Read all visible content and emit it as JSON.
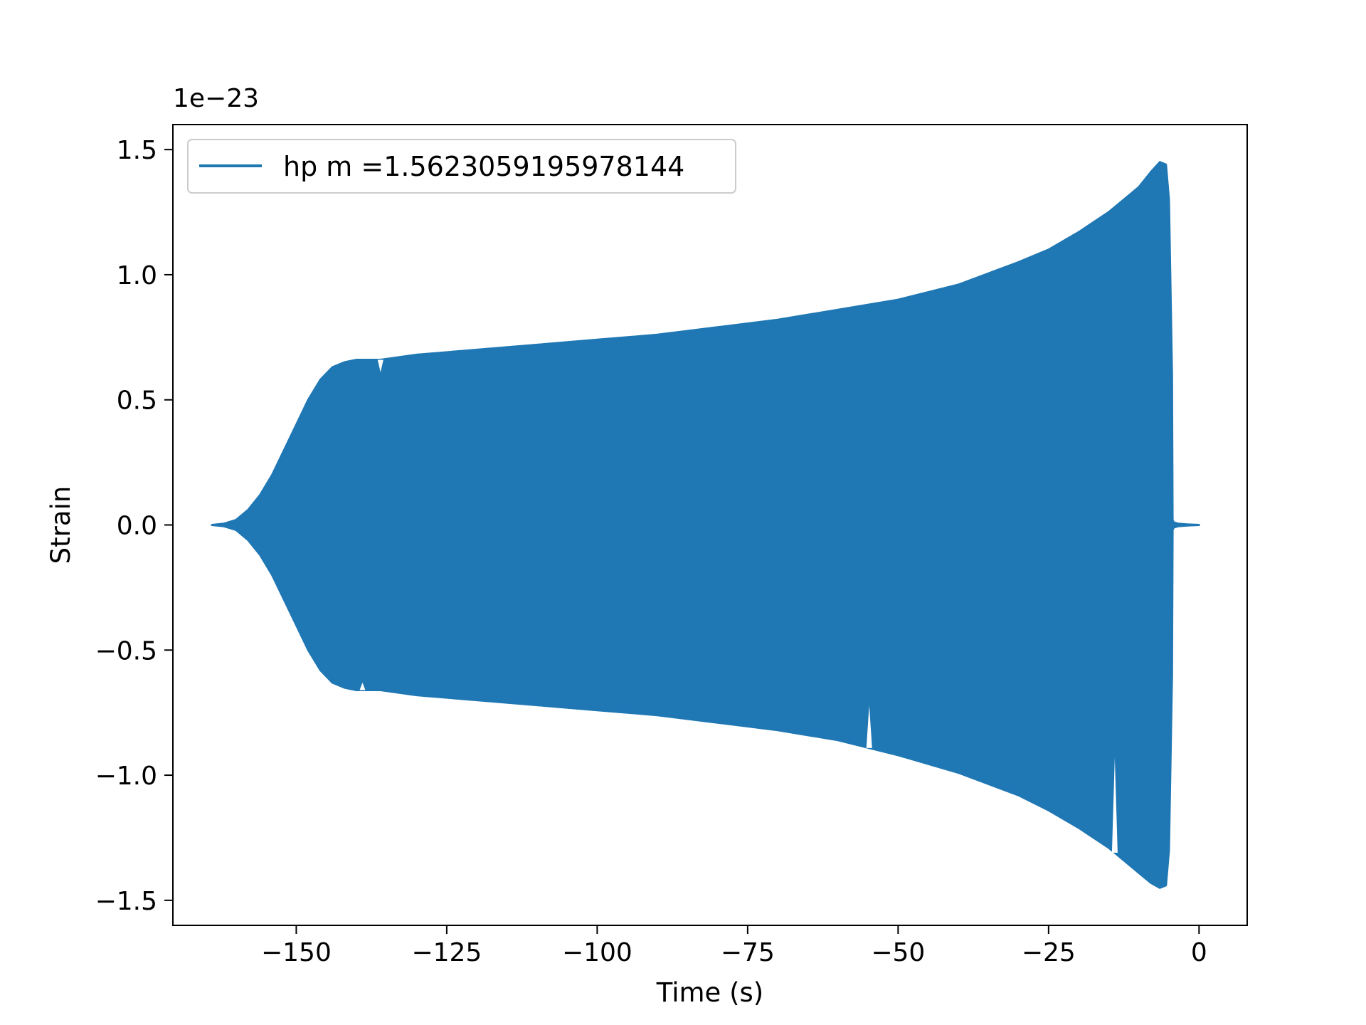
{
  "chart_data": {
    "type": "line",
    "xlabel": "Time (s)",
    "ylabel": "Strain",
    "offset_label": "1e−23",
    "y_scale_factor": 1e-23,
    "xlim": [
      -170.5,
      8.0
    ],
    "ylim": [
      -1.6,
      1.6
    ],
    "x_ticks": [
      -150,
      -125,
      -100,
      -75,
      -50,
      -25,
      0
    ],
    "x_tick_labels": [
      "−150",
      "−125",
      "−100",
      "−75",
      "−50",
      "−25",
      "0"
    ],
    "y_ticks": [
      1.5,
      1.0,
      0.5,
      0.0,
      -0.5,
      -1.0,
      -1.5
    ],
    "y_tick_labels": [
      "1.5",
      "1.0",
      "0.5",
      "0.0",
      "−0.5",
      "−1.0",
      "−1.5"
    ],
    "grid": false,
    "legend_position": "top-left",
    "series": [
      {
        "name": "hp m =1.5623059195978144",
        "color": "#1f77b4",
        "envelope": {
          "t": [
            -164.0,
            -162.0,
            -160.0,
            -158.0,
            -156.0,
            -154.0,
            -152.0,
            -150.0,
            -148.0,
            -146.0,
            -144.0,
            -142.0,
            -140.0,
            -136.0,
            -130.0,
            -120.0,
            -110.0,
            -100.0,
            -90.0,
            -80.0,
            -70.0,
            -60.0,
            -50.0,
            -40.0,
            -30.0,
            -25.0,
            -20.0,
            -15.0,
            -12.0,
            -10.0,
            -8.0,
            -6.5,
            -5.5,
            -5.0,
            -4.5,
            -4.4,
            -4.2,
            -3.5,
            -2.0,
            0.0
          ],
          "upper": [
            0.0,
            0.005,
            0.02,
            0.06,
            0.12,
            0.2,
            0.3,
            0.4,
            0.5,
            0.58,
            0.63,
            0.65,
            0.66,
            0.66,
            0.68,
            0.7,
            0.72,
            0.74,
            0.76,
            0.79,
            0.82,
            0.86,
            0.9,
            0.96,
            1.05,
            1.1,
            1.17,
            1.25,
            1.31,
            1.35,
            1.41,
            1.45,
            1.44,
            1.3,
            0.6,
            0.02,
            0.01,
            0.005,
            0.002,
            0.0
          ],
          "lower": [
            0.0,
            -0.005,
            -0.02,
            -0.06,
            -0.12,
            -0.2,
            -0.3,
            -0.4,
            -0.5,
            -0.58,
            -0.63,
            -0.65,
            -0.66,
            -0.66,
            -0.68,
            -0.7,
            -0.72,
            -0.74,
            -0.76,
            -0.79,
            -0.82,
            -0.86,
            -0.92,
            -0.99,
            -1.08,
            -1.14,
            -1.21,
            -1.29,
            -1.35,
            -1.39,
            -1.43,
            -1.45,
            -1.44,
            -1.3,
            -0.6,
            -0.02,
            -0.01,
            -0.005,
            -0.002,
            0.0
          ]
        },
        "notches": [
          {
            "t": -136.0,
            "side": "upper",
            "value": 0.61
          },
          {
            "t": -139.0,
            "side": "lower",
            "value": -0.63
          },
          {
            "t": -54.8,
            "side": "lower",
            "value": -0.72
          },
          {
            "t": -14.0,
            "side": "lower",
            "value": -0.93
          }
        ]
      }
    ]
  }
}
